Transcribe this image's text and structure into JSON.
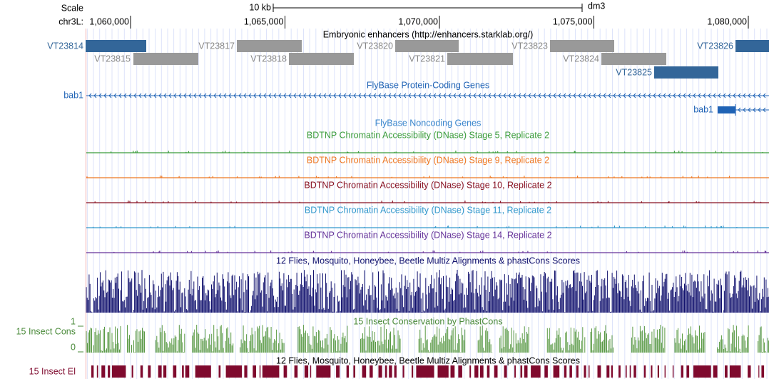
{
  "ruler": {
    "scale": "Scale",
    "span": "10 kb",
    "assembly": "dm3",
    "chrom": "chr3L:",
    "positions": [
      "1,060,000",
      "1,065,000",
      "1,070,000",
      "1,075,000",
      "1,080,000"
    ]
  },
  "enhancers": {
    "title": "Embryonic enhancers (http://enhancers.starklab.org/)",
    "items": [
      "VT23814",
      "VT23815",
      "VT23817",
      "VT23818",
      "VT23820",
      "VT23821",
      "VT23823",
      "VT23824",
      "VT23825",
      "VT23826"
    ]
  },
  "protein_genes": {
    "title": "FlyBase Protein-Coding Genes",
    "genes": [
      "bab1",
      "bab1"
    ]
  },
  "noncoding_genes": {
    "title": "FlyBase Noncoding Genes"
  },
  "dnase_tracks": [
    {
      "title": "BDTNP Chromatin Accessibility (DNase) Stage 5, Replicate 2"
    },
    {
      "title": "BDTNP Chromatin Accessibility (DNase) Stage 9, Replicate 2"
    },
    {
      "title": "BDTNP Chromatin Accessibility (DNase) Stage 10, Replicate 2"
    },
    {
      "title": "BDTNP Chromatin Accessibility (DNase) Stage 11, Replicate 2"
    },
    {
      "title": "BDTNP Chromatin Accessibility (DNase) Stage 14, Replicate 2"
    }
  ],
  "multiz": {
    "title": "12 Flies, Mosquito, Honeybee, Beetle Multiz Alignments & phastCons Scores"
  },
  "phastcons": {
    "title": "15 Insect Conservation by PhastCons",
    "label": "15 Insect Cons",
    "max": "1",
    "min": "0"
  },
  "elements": {
    "title": "12 Flies, Mosquito, Honeybee, Beetle Multiz Alignments & phastCons Scores",
    "label": "15 Insect El"
  }
}
